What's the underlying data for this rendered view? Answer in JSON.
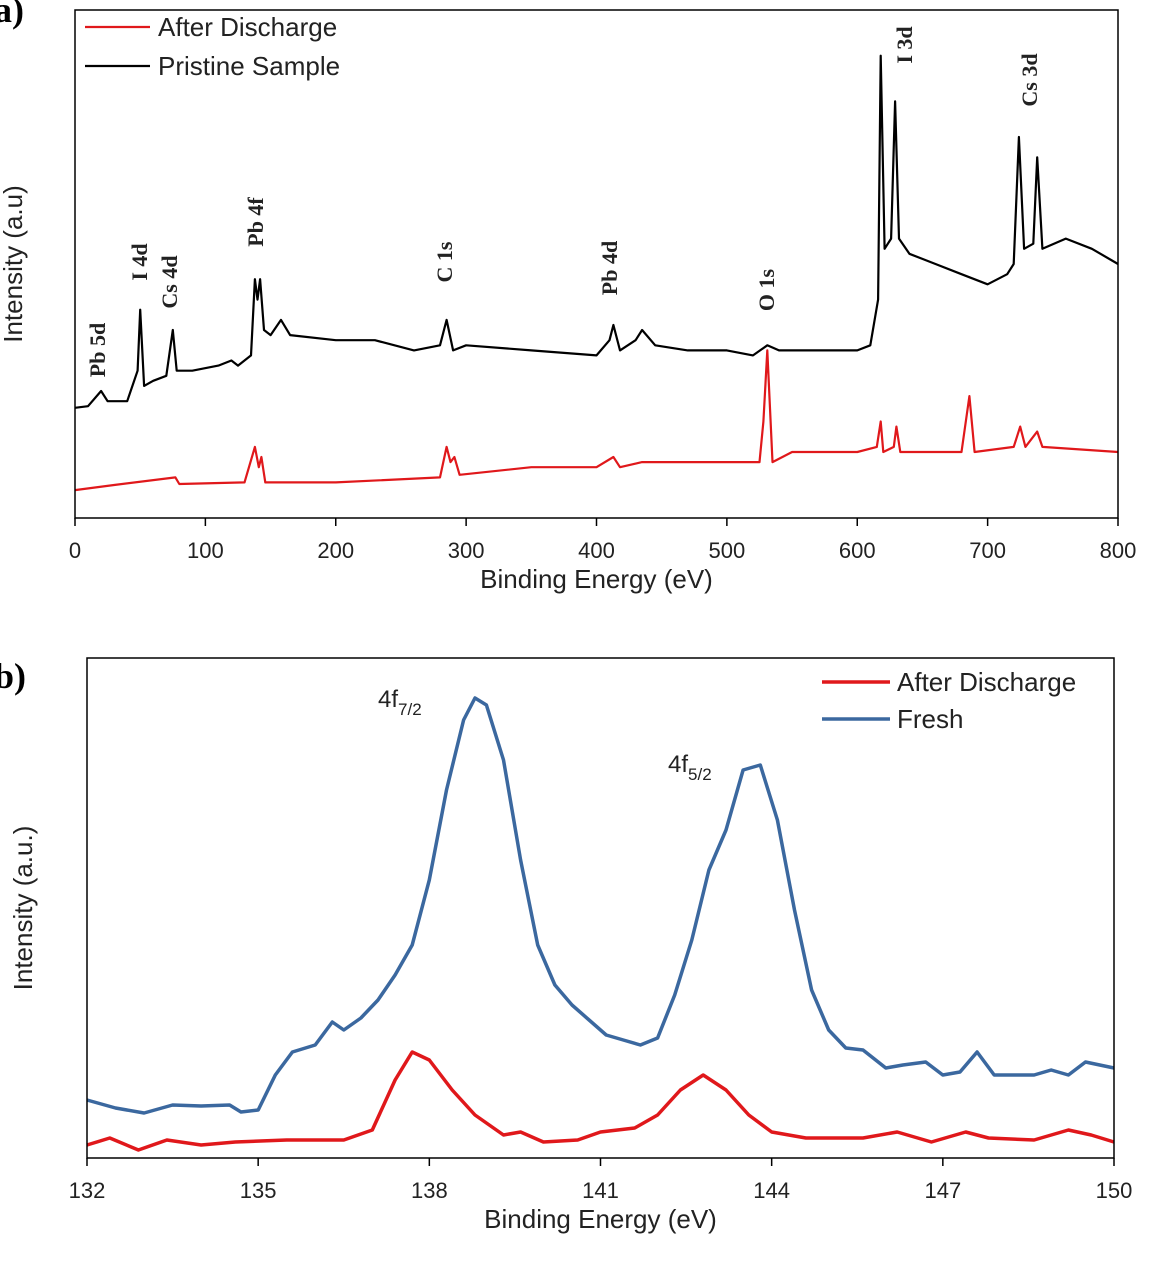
{
  "chart_data": [
    {
      "type": "line",
      "panel_label": "a)",
      "x_label": "Binding Energy (eV)",
      "y_label": "Intensity (a.u)",
      "xlim": [
        0,
        800
      ],
      "xticks": [
        0,
        100,
        200,
        300,
        400,
        500,
        600,
        700,
        800
      ],
      "ylim": [
        0,
        100
      ],
      "legend": "top-left",
      "annotations": [
        "Pb 5d",
        "I 4d",
        "Cs 4d",
        "Pb 4f",
        "C 1s",
        "Pb 4d",
        "O 1s",
        "I 3d",
        "Cs 3d"
      ],
      "series": [
        {
          "name": "After Discharge",
          "color": "#e0181b",
          "x": [
            0,
            30,
            77,
            80,
            130,
            138,
            141,
            143,
            146,
            200,
            280,
            285,
            288,
            291,
            295,
            350,
            400,
            413,
            418,
            435,
            500,
            525,
            528,
            531,
            535,
            550,
            600,
            615,
            618,
            620,
            628,
            630,
            633,
            680,
            686,
            690,
            720,
            725,
            729,
            738,
            742,
            800
          ],
          "values": [
            5.5,
            6.5,
            8,
            6.7,
            7,
            14,
            10,
            12,
            7,
            7,
            8,
            14,
            11,
            12,
            8.5,
            10,
            10,
            12,
            10,
            11,
            11,
            11,
            19,
            33,
            11,
            13,
            13,
            14,
            19,
            13,
            14,
            18,
            13,
            13,
            24,
            13,
            14,
            18,
            14,
            17,
            14,
            13
          ]
        },
        {
          "name": "Pristine Sample",
          "color": "#000000",
          "x": [
            0,
            10,
            20,
            25,
            40,
            48,
            50,
            53,
            60,
            70,
            75,
            78,
            90,
            110,
            120,
            125,
            135,
            138,
            140,
            142,
            145,
            150,
            158,
            165,
            200,
            230,
            260,
            280,
            285,
            290,
            300,
            350,
            400,
            410,
            413,
            418,
            430,
            435,
            445,
            470,
            500,
            520,
            531,
            540,
            600,
            610,
            616,
            618,
            621,
            626,
            629,
            632,
            640,
            650,
            660,
            680,
            700,
            715,
            720,
            724,
            728,
            735,
            738,
            742,
            760,
            780,
            800
          ],
          "values": [
            21.7,
            22,
            25,
            23,
            23,
            29,
            41,
            26,
            27,
            28,
            37,
            29,
            29,
            30,
            31,
            30,
            32,
            47,
            43,
            47,
            37,
            36,
            39,
            36,
            35,
            35,
            33,
            34,
            39,
            33,
            34,
            33,
            32,
            35,
            38,
            33,
            35,
            37,
            34,
            33,
            33,
            32,
            34,
            33,
            33,
            34,
            43,
            91,
            53,
            55,
            82,
            55,
            52,
            51,
            50,
            48,
            46,
            48,
            50,
            75,
            53,
            54,
            71,
            53,
            55,
            53,
            50
          ]
        }
      ]
    },
    {
      "type": "line",
      "panel_label": "b)",
      "x_label": "Binding Energy (eV)",
      "y_label": "Intensity (a.u.)",
      "xlim": [
        132,
        150
      ],
      "xticks": [
        132,
        135,
        138,
        141,
        144,
        147,
        150
      ],
      "ylim": [
        0,
        100
      ],
      "legend": "top-right",
      "annotations": [
        {
          "text": "4f",
          "sub": "7/2"
        },
        {
          "text": "4f",
          "sub": "5/2"
        }
      ],
      "series": [
        {
          "name": "After Discharge",
          "color": "#e0181b",
          "x": [
            132,
            132.4,
            132.9,
            133.4,
            134,
            134.6,
            135.5,
            136.5,
            137,
            137.4,
            137.7,
            138,
            138.4,
            138.8,
            139.3,
            139.6,
            140,
            140.6,
            141,
            141.6,
            142,
            142.4,
            142.8,
            143.2,
            143.6,
            144,
            144.6,
            145.6,
            146.2,
            146.8,
            147.4,
            147.8,
            148.6,
            149.2,
            149.6,
            150
          ],
          "values": [
            2.6,
            4,
            1.6,
            3.6,
            2.6,
            3.2,
            3.6,
            3.6,
            5.6,
            15.6,
            21.2,
            19.6,
            13.6,
            8.6,
            4.6,
            5.2,
            3.2,
            3.6,
            5.2,
            6,
            8.6,
            13.6,
            16.6,
            13.6,
            8.6,
            5.2,
            4,
            4,
            5.2,
            3.2,
            5.2,
            4,
            3.6,
            5.6,
            4.6,
            3.2
          ]
        },
        {
          "name": "Fresh",
          "color": "#3b689f",
          "x": [
            132,
            132.5,
            133,
            133.5,
            134,
            134.5,
            134.7,
            135,
            135.3,
            135.6,
            136,
            136.3,
            136.5,
            136.8,
            137.1,
            137.4,
            137.7,
            138,
            138.3,
            138.6,
            138.8,
            139,
            139.3,
            139.6,
            139.9,
            140.2,
            140.5,
            140.8,
            141.1,
            141.4,
            141.7,
            142,
            142.3,
            142.6,
            142.9,
            143.2,
            143.5,
            143.8,
            144.1,
            144.4,
            144.7,
            145,
            145.3,
            145.6,
            146,
            146.3,
            146.7,
            147,
            147.3,
            147.6,
            147.9,
            148.2,
            148.6,
            148.9,
            149.2,
            149.5,
            150
          ],
          "values": [
            11.6,
            10,
            9,
            10.6,
            10.4,
            10.6,
            9.2,
            9.6,
            16.6,
            21.2,
            22.6,
            27.2,
            25.6,
            28,
            31.6,
            36.6,
            42.6,
            55.6,
            73.6,
            87.6,
            92,
            90.6,
            79.6,
            59.6,
            42.6,
            34.6,
            30.6,
            27.6,
            24.6,
            23.6,
            22.6,
            24,
            32.6,
            43.6,
            57.6,
            65.6,
            77.6,
            78.6,
            67.6,
            49.6,
            33.6,
            25.6,
            22,
            21.6,
            18,
            18.6,
            19.2,
            16.6,
            17.2,
            21.2,
            16.6,
            16.6,
            16.6,
            17.6,
            16.6,
            19.2,
            18
          ]
        }
      ]
    }
  ]
}
